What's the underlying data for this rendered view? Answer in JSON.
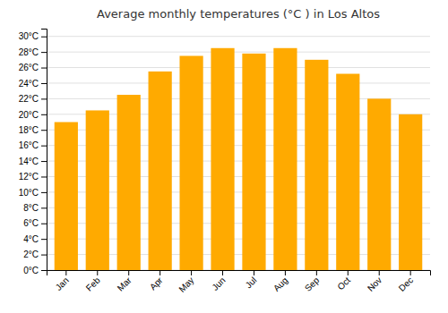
{
  "chart_data": {
    "type": "bar",
    "title": "Average monthly temperatures (°C ) in Los Altos",
    "categories": [
      "Jan",
      "Feb",
      "Mar",
      "Apr",
      "May",
      "Jun",
      "Jul",
      "Aug",
      "Sep",
      "Oct",
      "Nov",
      "Dec"
    ],
    "values": [
      19,
      20.5,
      22.5,
      25.5,
      27.5,
      28.5,
      27.8,
      28.5,
      27,
      25.2,
      22,
      20
    ],
    "color": "#FFAA00",
    "ylim": [
      0,
      31
    ],
    "yticks": [
      {
        "value": 0,
        "label": "0°C"
      },
      {
        "value": 2,
        "label": "2°C"
      },
      {
        "value": 4,
        "label": "4°C"
      },
      {
        "value": 6,
        "label": "6°C"
      },
      {
        "value": 8,
        "label": "8°C"
      },
      {
        "value": 10,
        "label": "10°C"
      },
      {
        "value": 12,
        "label": "12°C"
      },
      {
        "value": 14,
        "label": "14°C"
      },
      {
        "value": 16,
        "label": "16°C"
      },
      {
        "value": 18,
        "label": "18°C"
      },
      {
        "value": 20,
        "label": "20°C"
      },
      {
        "value": 22,
        "label": "22°C"
      },
      {
        "value": 24,
        "label": "24°C"
      },
      {
        "value": 26,
        "label": "26°C"
      },
      {
        "value": 28,
        "label": "28°C"
      },
      {
        "value": 30,
        "label": "30°C"
      }
    ],
    "grid": true
  }
}
